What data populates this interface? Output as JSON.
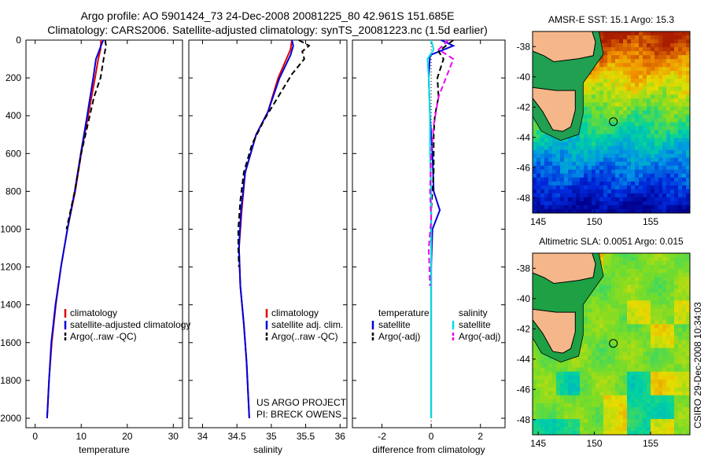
{
  "header": {
    "line1": "Argo profile: AO 5901424_73 24-Dec-2008 20081225_80 42.961S 151.685E",
    "line2": "Climatology: CARS2006. Satellite-adjusted climatology: synTS_20081223.nc (1.5d earlier)"
  },
  "colors": {
    "climatology": "#e00000",
    "satellite": "#0000dd",
    "argo": "#000000",
    "cyan": "#00dddd",
    "magenta": "#ee00ee"
  },
  "chart_data": [
    {
      "type": "line",
      "id": "temperature",
      "xlabel": "temperature",
      "ylabel": "",
      "xlim": [
        -2,
        32
      ],
      "ylim": [
        2050,
        0
      ],
      "xticks": [
        0,
        10,
        20,
        30
      ],
      "yticks": [
        0,
        200,
        400,
        600,
        800,
        1000,
        1200,
        1400,
        1600,
        1800,
        2000
      ],
      "legend": {
        "placement": "lower-right",
        "entries": [
          "climatology",
          "satellite-adjusted climatology",
          "Argo(..raw -QC)"
        ]
      },
      "series": [
        {
          "name": "climatology",
          "style": "solid",
          "color": "#e00000",
          "points": [
            [
              14.3,
              0
            ],
            [
              14.2,
              50
            ],
            [
              13.7,
              100
            ],
            [
              13.0,
              200
            ],
            [
              11.5,
              400
            ],
            [
              10.0,
              600
            ],
            [
              8.7,
              800
            ],
            [
              7.0,
              1000
            ],
            [
              5.6,
              1200
            ],
            [
              4.5,
              1400
            ],
            [
              3.6,
              1600
            ],
            [
              3.0,
              1800
            ],
            [
              2.6,
              2000
            ]
          ]
        },
        {
          "name": "satellite-adjusted climatology",
          "style": "solid",
          "color": "#0000dd",
          "points": [
            [
              14.8,
              0
            ],
            [
              14.3,
              30
            ],
            [
              13.2,
              100
            ],
            [
              12.6,
              200
            ],
            [
              11.3,
              400
            ],
            [
              9.9,
              600
            ],
            [
              8.6,
              800
            ],
            [
              7.0,
              1000
            ],
            [
              5.6,
              1200
            ],
            [
              4.4,
              1400
            ],
            [
              3.5,
              1600
            ],
            [
              3.0,
              1800
            ],
            [
              2.6,
              2000
            ]
          ]
        },
        {
          "name": "Argo(..raw -QC)",
          "style": "dashed",
          "color": "#000000",
          "points": [
            [
              15.2,
              0
            ],
            [
              15.4,
              30
            ],
            [
              15.0,
              80
            ],
            [
              14.2,
              200
            ],
            [
              12.8,
              300
            ],
            [
              11.4,
              450
            ],
            [
              10.0,
              600
            ],
            [
              8.6,
              800
            ],
            [
              6.8,
              1000
            ]
          ]
        }
      ]
    },
    {
      "type": "line",
      "id": "salinity",
      "xlabel": "salinity",
      "ylabel": "",
      "xlim": [
        33.8,
        36.1
      ],
      "ylim": [
        2050,
        0
      ],
      "xticks": [
        34,
        34.5,
        35,
        35.5,
        36
      ],
      "legend": {
        "placement": "lower-right",
        "entries": [
          "climatology",
          "satellite adj. clim.",
          "Argo(..raw -QC)"
        ]
      },
      "annotation": [
        "US ARGO PROJECT",
        "PI: BRECK OWENS"
      ],
      "series": [
        {
          "name": "climatology",
          "style": "solid",
          "color": "#e00000",
          "points": [
            [
              35.3,
              0
            ],
            [
              35.28,
              50
            ],
            [
              35.22,
              100
            ],
            [
              35.1,
              200
            ],
            [
              34.95,
              380
            ],
            [
              34.78,
              500
            ],
            [
              34.62,
              700
            ],
            [
              34.57,
              900
            ],
            [
              34.53,
              1100
            ],
            [
              34.55,
              1300
            ],
            [
              34.6,
              1500
            ],
            [
              34.64,
              1700
            ],
            [
              34.68,
              2000
            ]
          ]
        },
        {
          "name": "satellite adj. clim.",
          "style": "solid",
          "color": "#0000dd",
          "points": [
            [
              35.3,
              0
            ],
            [
              35.32,
              30
            ],
            [
              35.28,
              80
            ],
            [
              35.12,
              200
            ],
            [
              34.95,
              380
            ],
            [
              34.78,
              500
            ],
            [
              34.62,
              700
            ],
            [
              34.56,
              900
            ],
            [
              34.53,
              1100
            ],
            [
              34.55,
              1300
            ],
            [
              34.6,
              1500
            ],
            [
              34.64,
              1700
            ],
            [
              34.68,
              2000
            ]
          ]
        },
        {
          "name": "Argo(..raw -QC)",
          "style": "dashed",
          "color": "#000000",
          "points": [
            [
              35.4,
              0
            ],
            [
              35.55,
              30
            ],
            [
              35.45,
              60
            ],
            [
              35.48,
              100
            ],
            [
              35.3,
              180
            ],
            [
              35.1,
              300
            ],
            [
              34.9,
              420
            ],
            [
              34.72,
              550
            ],
            [
              34.6,
              700
            ],
            [
              34.55,
              850
            ],
            [
              34.52,
              1000
            ],
            [
              34.52,
              1100
            ],
            [
              34.53,
              1200
            ]
          ]
        }
      ]
    },
    {
      "type": "line",
      "id": "difference",
      "xlabel": "difference from climatology",
      "ylabel": "",
      "xlim": [
        -3.2,
        3.0
      ],
      "ylim": [
        2050,
        0
      ],
      "xticks": [
        -2,
        0,
        2
      ],
      "legend": {
        "placement": "lower",
        "groups": [
          {
            "heading": "temperature",
            "entries": [
              "satellite",
              "Argo(-adj)"
            ]
          },
          {
            "heading": "salinity",
            "entries": [
              "satellite",
              "Argo(-adj)"
            ]
          }
        ]
      },
      "series": [
        {
          "name": "temperature satellite",
          "style": "solid",
          "color": "#0000dd",
          "points": [
            [
              0.4,
              0
            ],
            [
              0.9,
              30
            ],
            [
              -0.05,
              80
            ],
            [
              -0.1,
              200
            ],
            [
              -0.05,
              400
            ],
            [
              0.05,
              600
            ],
            [
              0.1,
              800
            ],
            [
              0.35,
              900
            ],
            [
              0.05,
              1000
            ],
            [
              0.0,
              1200
            ],
            [
              0.0,
              1600
            ],
            [
              0.0,
              2000
            ]
          ]
        },
        {
          "name": "temperature Argo(-adj)",
          "style": "dashed",
          "color": "#000000",
          "points": [
            [
              0.9,
              0
            ],
            [
              0.6,
              30
            ],
            [
              0.3,
              60
            ],
            [
              0.5,
              100
            ],
            [
              0.25,
              200
            ],
            [
              0.3,
              300
            ],
            [
              0.15,
              400
            ],
            [
              0.1,
              500
            ],
            [
              0.1,
              700
            ],
            [
              0.0,
              900
            ],
            [
              0.0,
              1100
            ]
          ]
        },
        {
          "name": "salinity satellite",
          "style": "solid",
          "color": "#00dddd",
          "points": [
            [
              0.0,
              0
            ],
            [
              0.1,
              50
            ],
            [
              -0.15,
              100
            ],
            [
              -0.1,
              200
            ],
            [
              -0.05,
              400
            ],
            [
              -0.05,
              600
            ],
            [
              0.0,
              800
            ],
            [
              0.0,
              1000
            ],
            [
              0.0,
              1500
            ],
            [
              0.0,
              2000
            ]
          ]
        },
        {
          "name": "salinity Argo(-adj)",
          "style": "dashed",
          "color": "#ee00ee",
          "points": [
            [
              0.7,
              0
            ],
            [
              0.3,
              50
            ],
            [
              0.9,
              100
            ],
            [
              0.6,
              200
            ],
            [
              0.3,
              300
            ],
            [
              0.1,
              450
            ],
            [
              0.0,
              600
            ],
            [
              -0.05,
              800
            ],
            [
              0.0,
              950
            ],
            [
              -0.1,
              1100
            ],
            [
              -0.05,
              1300
            ]
          ]
        }
      ]
    },
    {
      "type": "heatmap",
      "id": "sst_map",
      "title": "AMSR-E SST: 15.1 Argo: 15.3",
      "xlim": [
        144.5,
        158.5
      ],
      "ylim": [
        -49,
        -37
      ],
      "xticks": [
        145,
        150,
        155
      ],
      "yticks": [
        -38,
        -40,
        -42,
        -44,
        -46,
        -48
      ],
      "argo_position": [
        151.685,
        -42.961
      ]
    },
    {
      "type": "heatmap",
      "id": "sla_map",
      "title": "Altimetric SLA: 0.0051 Argo: 0.015",
      "xlim": [
        144.5,
        158.5
      ],
      "ylim": [
        -49,
        -37
      ],
      "xticks": [
        145,
        150,
        155
      ],
      "yticks": [
        -38,
        -40,
        -42,
        -44,
        -46,
        -48
      ],
      "argo_position": [
        151.685,
        -42.961
      ]
    }
  ],
  "footer": {
    "stamp": "CSIRO 29-Dec-2008 10:34:03"
  }
}
